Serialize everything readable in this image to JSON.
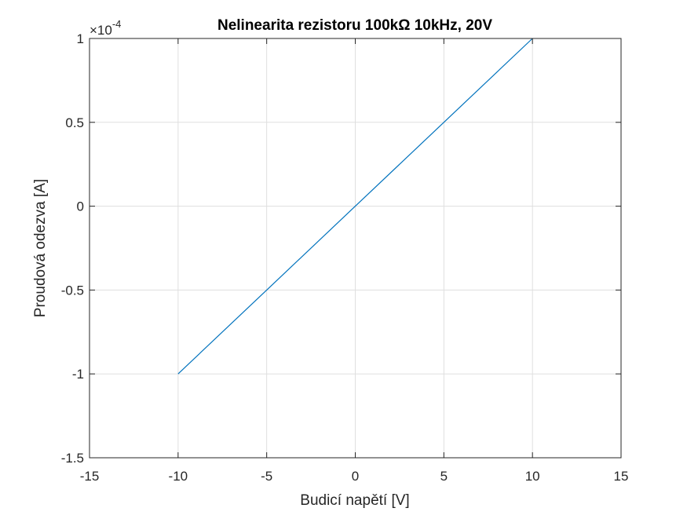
{
  "chart_data": {
    "type": "line",
    "title": "Nelinearita rezistoru 100kΩ 10kHz, 20V",
    "xlabel": "Budicí napětí [V]",
    "ylabel": "Proudová odezva [A]",
    "xlim": [
      -15,
      15
    ],
    "ylim": [
      -1.5,
      1
    ],
    "y_exponent_label": "×10",
    "y_exponent_power": "-4",
    "x_ticks": [
      -15,
      -10,
      -5,
      0,
      5,
      10,
      15
    ],
    "x_tick_labels": [
      "-15",
      "-10",
      "-5",
      "0",
      "5",
      "10",
      "15"
    ],
    "y_ticks": [
      -1.5,
      -1,
      -0.5,
      0,
      0.5,
      1
    ],
    "y_tick_labels": [
      "-1.5",
      "-1",
      "-0.5",
      "0",
      "0.5",
      "1"
    ],
    "grid": true,
    "series": [
      {
        "color": "#0072bd",
        "x": [
          -10,
          -5,
          0,
          5,
          10
        ],
        "y": [
          -1,
          -0.5,
          0,
          0.5,
          1
        ]
      }
    ]
  }
}
